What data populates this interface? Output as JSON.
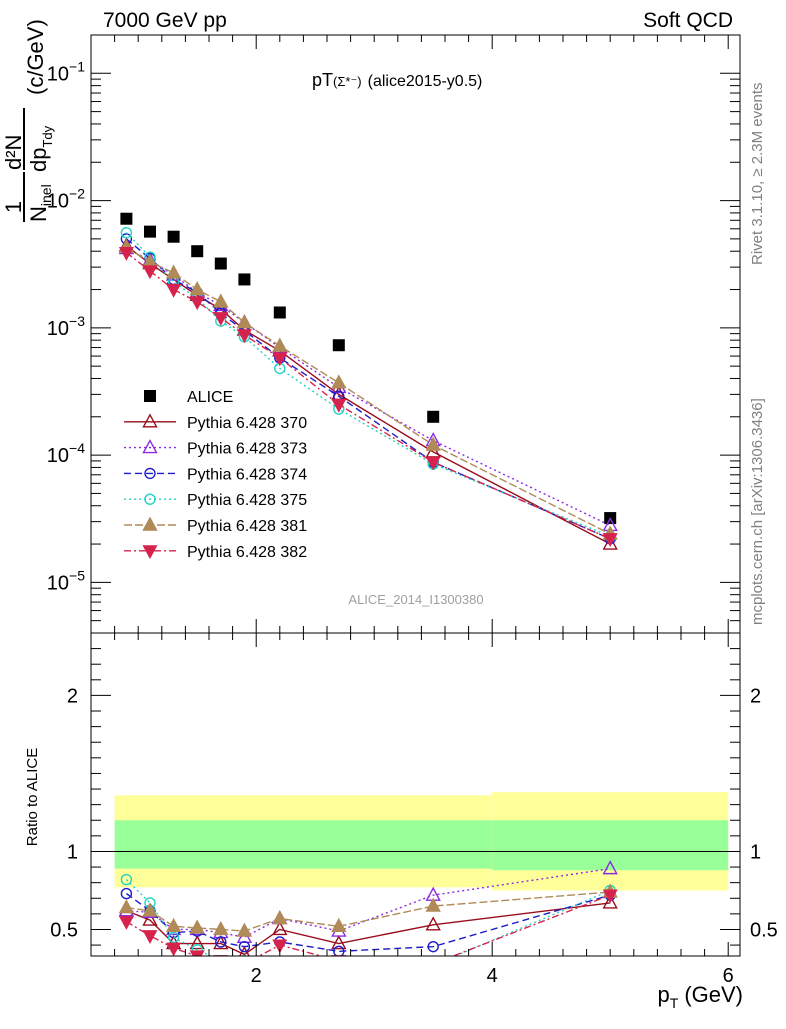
{
  "header": {
    "left": "7000 GeV pp",
    "right": "Soft QCD"
  },
  "plot_title": {
    "main": "pT",
    "particle": "(Σ*⁻)",
    "tag": "(alice2015-y0.5)"
  },
  "side_labels": {
    "rivet": "Rivet 3.1.10, ≥ 2.3M events",
    "mcplots": "mcplots.cern.ch [arXiv:1306.3436]"
  },
  "watermark": "ALICE_2014_I1300380",
  "ylabel_top": {
    "one": "1",
    "nine": "N",
    "inel": "inel",
    "d2n": "d²N",
    "dpt": "dp",
    "tdy": "Tdy",
    "units": "(c/GeV)"
  },
  "ylabel_bottom": "Ratio to ALICE",
  "xlabel": {
    "p": "p",
    "t": "T",
    "units": "(GeV)"
  },
  "colors": {
    "ALICE": "#000000",
    "370": "#9a0d1d",
    "373": "#8a2be2",
    "374": "#1c1ccc",
    "375": "#22d4c4",
    "381": "#b08a57",
    "382": "#d6234d",
    "band_outer": "#ffff99",
    "band_inner": "#99ff99"
  },
  "chart_data": {
    "type": "scatter",
    "x_label": "p_T (GeV)",
    "xlim": [
      0.6,
      6.1
    ],
    "x_ticks": [
      2,
      4,
      6
    ],
    "top": {
      "yscale": "log",
      "ylim": [
        4e-06,
        0.2
      ],
      "y_ticks": [
        {
          "v": 1e-05,
          "b": "10",
          "e": "−5"
        },
        {
          "v": 0.0001,
          "b": "10",
          "e": "−4"
        },
        {
          "v": 0.001,
          "b": "10",
          "e": "−3"
        },
        {
          "v": 0.01,
          "b": "10",
          "e": "−2"
        },
        {
          "v": 0.1,
          "b": "10",
          "e": "−1"
        }
      ]
    },
    "bottom": {
      "ylim": [
        0.33,
        2.4
      ],
      "y_ticks": [
        0.5,
        1,
        2
      ],
      "band_bins": [
        {
          "x0": 0.8,
          "x1": 4.0,
          "outer": [
            0.77,
            1.36
          ],
          "inner": [
            0.89,
            1.2
          ]
        },
        {
          "x0": 4.0,
          "x1": 6.0,
          "outer": [
            0.75,
            1.38
          ],
          "inner": [
            0.88,
            1.2
          ]
        }
      ]
    },
    "x": [
      0.9,
      1.1,
      1.3,
      1.5,
      1.7,
      1.9,
      2.2,
      2.7,
      3.5,
      5.0
    ],
    "series": [
      {
        "name": "ALICE",
        "key": "ALICE",
        "marker": "square",
        "dash": "",
        "values": [
          0.0072,
          0.0057,
          0.0052,
          0.004,
          0.0032,
          0.0024,
          0.00132,
          0.00073,
          0.0002,
          3.2e-05
        ],
        "ratio": null
      },
      {
        "name": "Pythia 6.428 370",
        "key": "370",
        "marker": "triangle-up-open",
        "dash": "",
        "values": [
          0.0044,
          0.0032,
          0.0024,
          0.0018,
          0.0014,
          0.00096,
          0.00066,
          0.0003,
          0.000106,
          2e-05
        ],
        "ratio": [
          0.62,
          0.56,
          0.41,
          0.41,
          0.41,
          0.34,
          0.5,
          0.41,
          0.53,
          0.67
        ]
      },
      {
        "name": "Pythia 6.428 373",
        "key": "373",
        "marker": "triangle-up-open",
        "dash": "2,3",
        "values": [
          0.0042,
          0.0034,
          0.0026,
          0.0019,
          0.0015,
          0.0011,
          0.0007,
          0.00034,
          0.00013,
          2.8e-05
        ],
        "ratio": [
          0.62,
          0.61,
          0.5,
          0.5,
          0.48,
          0.45,
          0.57,
          0.49,
          0.72,
          0.89
        ]
      },
      {
        "name": "Pythia 6.428 374",
        "key": "374",
        "marker": "circle-open",
        "dash": "7,4",
        "values": [
          0.005,
          0.0035,
          0.0024,
          0.0019,
          0.0013,
          0.00095,
          0.00058,
          0.00029,
          8.8e-05,
          2.2e-05
        ],
        "ratio": [
          0.73,
          0.62,
          0.48,
          0.49,
          0.42,
          0.39,
          0.42,
          0.36,
          0.39,
          0.72
        ]
      },
      {
        "name": "Pythia 6.428 375",
        "key": "375",
        "marker": "circle-open",
        "dash": "2,3",
        "values": [
          0.0056,
          0.0036,
          0.0023,
          0.0017,
          0.00113,
          0.00085,
          0.00048,
          0.00023,
          8.5e-05,
          2.3e-05
        ],
        "ratio": [
          0.82,
          0.67,
          0.45,
          0.37,
          0.3,
          0.3,
          0.28,
          0.25,
          0.27,
          0.75
        ]
      },
      {
        "name": "Pythia 6.428 381",
        "key": "381",
        "marker": "triangle-up-filled",
        "dash": "8,3",
        "values": [
          0.0043,
          0.0033,
          0.0027,
          0.002,
          0.0016,
          0.0011,
          0.00072,
          0.00037,
          0.00012,
          2.4e-05
        ],
        "ratio": [
          0.64,
          0.62,
          0.52,
          0.51,
          0.5,
          0.49,
          0.57,
          0.52,
          0.65,
          0.74
        ]
      },
      {
        "name": "Pythia 6.428 382",
        "key": "382",
        "marker": "triangle-down-filled",
        "dash": "7,3,2,3",
        "values": [
          0.0039,
          0.0028,
          0.002,
          0.0016,
          0.0012,
          0.00088,
          0.00058,
          0.00025,
          8.8e-05,
          2.2e-05
        ],
        "ratio": [
          0.55,
          0.46,
          0.38,
          0.33,
          0.3,
          0.28,
          0.4,
          0.3,
          0.28,
          0.72
        ]
      }
    ]
  }
}
